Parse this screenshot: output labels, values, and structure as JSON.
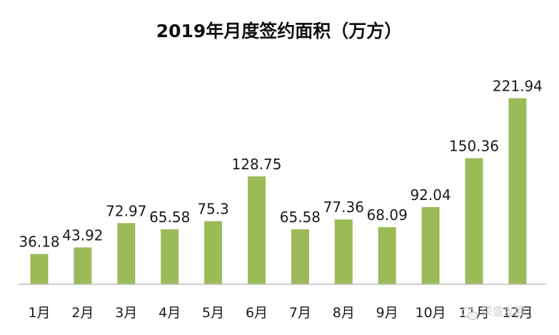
{
  "chart_data": {
    "type": "bar",
    "title": "2019年月度签约面积（万方）",
    "xlabel": "",
    "ylabel": "",
    "categories": [
      "1月",
      "2月",
      "3月",
      "4月",
      "5月",
      "6月",
      "7月",
      "8月",
      "9月",
      "10月",
      "11月",
      "12月"
    ],
    "values": [
      36.18,
      43.92,
      72.97,
      65.58,
      75.3,
      128.75,
      65.58,
      77.36,
      68.09,
      92.04,
      150.36,
      221.94
    ],
    "data_labels": [
      "36.18",
      "43.92",
      "72.97",
      "65.58",
      "75.3",
      "128.75",
      "65.58",
      "77.36",
      "68.09",
      "92.04",
      "150.36",
      "221.94"
    ],
    "ylim": [
      0,
      230
    ],
    "grid": false,
    "legend": "none",
    "colors": {
      "bar": "#9bbb59",
      "axis": "#bfbfbf",
      "text": "#1a1a1a"
    }
  },
  "watermark": {
    "text": "荣盛发展",
    "icon": "wechat-icon"
  }
}
